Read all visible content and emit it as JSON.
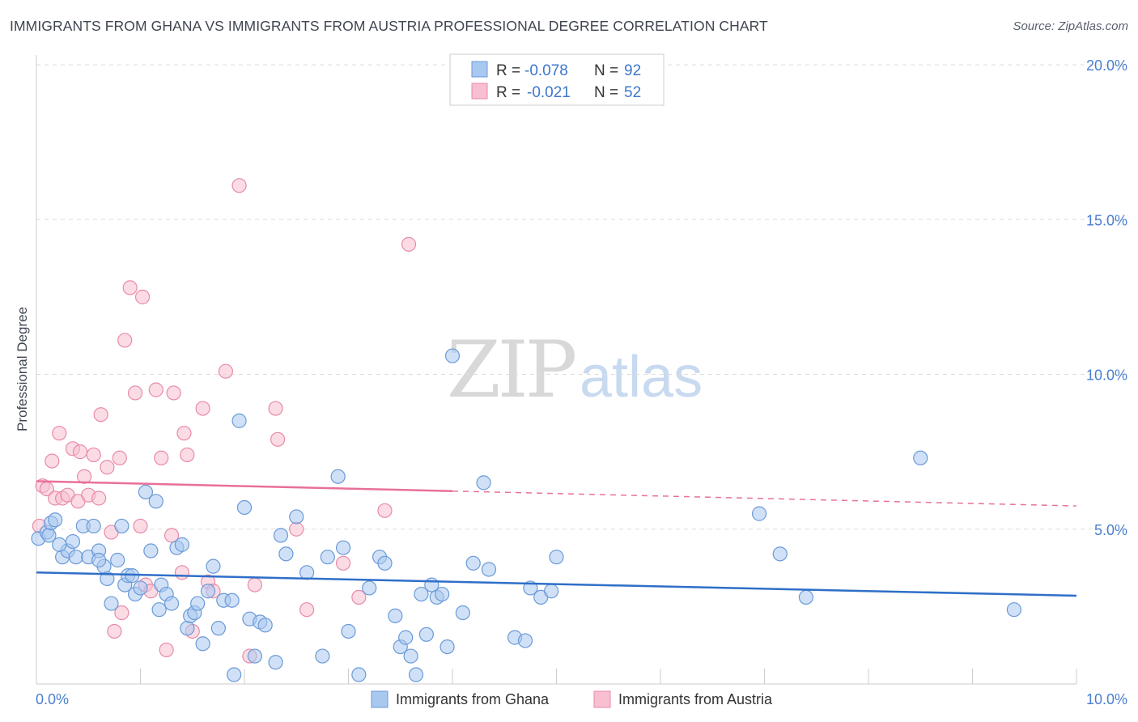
{
  "title": "IMMIGRANTS FROM GHANA VS IMMIGRANTS FROM AUSTRIA PROFESSIONAL DEGREE CORRELATION CHART",
  "source": "Source: ZipAtlas.com",
  "watermark": {
    "zip": "ZIP",
    "atlas": "atlas"
  },
  "colors": {
    "ghana_fill": "#a9c8f0",
    "ghana_stroke": "#6a9ad8",
    "ghana_line": "#2f6fc8",
    "austria_fill": "#f7bfd0",
    "austria_stroke": "#e88aa8",
    "austria_line": "#e8709a",
    "tick_label": "#4a7fd0",
    "grid": "#dddddd"
  },
  "legend": {
    "rows": [
      {
        "r_label": "R =",
        "r_value": "-0.078",
        "n_label": "N =",
        "n_value": "92"
      },
      {
        "r_label": "R =",
        "r_value": "-0.021",
        "n_label": "N =",
        "n_value": "52"
      }
    ]
  },
  "chart_data": {
    "type": "scatter",
    "title": "IMMIGRANTS FROM GHANA VS IMMIGRANTS FROM AUSTRIA PROFESSIONAL DEGREE CORRELATION CHART",
    "xlabel": "",
    "ylabel": "Professional Degree",
    "xlim": [
      0,
      10
    ],
    "ylim": [
      0,
      20
    ],
    "x_tick_labels": [
      "0.0%",
      "10.0%"
    ],
    "y_ticks": [
      5,
      10,
      15,
      20
    ],
    "y_tick_labels": [
      "5.0%",
      "10.0%",
      "15.0%",
      "20.0%"
    ],
    "grid": true,
    "legend_position": "top-center",
    "series": [
      {
        "name": "Immigrants from Ghana",
        "trend": {
          "x": [
            0,
            10
          ],
          "y": [
            3.6,
            2.85
          ],
          "solid_until": 10
        },
        "points": [
          [
            0.02,
            4.7
          ],
          [
            0.1,
            4.9
          ],
          [
            0.12,
            4.8
          ],
          [
            0.14,
            5.2
          ],
          [
            0.18,
            5.3
          ],
          [
            0.25,
            4.1
          ],
          [
            0.3,
            4.3
          ],
          [
            0.35,
            4.6
          ],
          [
            0.38,
            4.1
          ],
          [
            0.45,
            5.1
          ],
          [
            0.5,
            4.1
          ],
          [
            0.55,
            5.1
          ],
          [
            0.6,
            4.3
          ],
          [
            0.65,
            3.8
          ],
          [
            0.68,
            3.4
          ],
          [
            0.72,
            2.6
          ],
          [
            0.78,
            4.0
          ],
          [
            0.82,
            5.1
          ],
          [
            0.85,
            3.2
          ],
          [
            0.88,
            3.5
          ],
          [
            0.92,
            3.5
          ],
          [
            0.95,
            2.9
          ],
          [
            1.0,
            3.1
          ],
          [
            1.05,
            6.2
          ],
          [
            1.1,
            4.3
          ],
          [
            1.15,
            5.9
          ],
          [
            1.18,
            2.4
          ],
          [
            1.2,
            3.2
          ],
          [
            1.25,
            2.9
          ],
          [
            1.3,
            2.6
          ],
          [
            1.35,
            4.4
          ],
          [
            1.4,
            4.5
          ],
          [
            1.45,
            1.8
          ],
          [
            1.48,
            2.2
          ],
          [
            1.52,
            2.3
          ],
          [
            1.55,
            2.6
          ],
          [
            1.6,
            1.3
          ],
          [
            1.65,
            3.0
          ],
          [
            1.7,
            3.8
          ],
          [
            1.75,
            1.8
          ],
          [
            1.8,
            2.7
          ],
          [
            1.88,
            2.7
          ],
          [
            1.9,
            0.3
          ],
          [
            1.95,
            8.5
          ],
          [
            2.0,
            5.7
          ],
          [
            2.05,
            2.1
          ],
          [
            2.1,
            0.9
          ],
          [
            2.15,
            2.0
          ],
          [
            2.2,
            1.9
          ],
          [
            2.3,
            0.7
          ],
          [
            2.35,
            4.8
          ],
          [
            2.4,
            4.2
          ],
          [
            2.5,
            5.4
          ],
          [
            2.6,
            3.6
          ],
          [
            2.75,
            0.9
          ],
          [
            2.8,
            4.1
          ],
          [
            2.9,
            6.7
          ],
          [
            2.95,
            4.4
          ],
          [
            3.0,
            1.7
          ],
          [
            3.1,
            0.3
          ],
          [
            3.2,
            3.1
          ],
          [
            3.3,
            4.1
          ],
          [
            3.35,
            3.9
          ],
          [
            3.45,
            2.2
          ],
          [
            3.5,
            1.2
          ],
          [
            3.55,
            1.5
          ],
          [
            3.6,
            0.9
          ],
          [
            3.65,
            0.3
          ],
          [
            3.7,
            2.9
          ],
          [
            3.75,
            1.6
          ],
          [
            3.8,
            3.2
          ],
          [
            3.85,
            2.8
          ],
          [
            3.9,
            2.9
          ],
          [
            3.95,
            1.2
          ],
          [
            4.0,
            10.6
          ],
          [
            4.1,
            2.3
          ],
          [
            4.2,
            3.9
          ],
          [
            4.3,
            6.5
          ],
          [
            4.35,
            3.7
          ],
          [
            4.6,
            1.5
          ],
          [
            4.7,
            1.4
          ],
          [
            4.75,
            3.1
          ],
          [
            4.85,
            2.8
          ],
          [
            4.95,
            3.0
          ],
          [
            5.0,
            4.1
          ],
          [
            6.95,
            5.5
          ],
          [
            7.15,
            4.2
          ],
          [
            7.4,
            2.8
          ],
          [
            8.5,
            7.3
          ],
          [
            9.4,
            2.4
          ],
          [
            0.22,
            4.5
          ],
          [
            0.6,
            4.0
          ]
        ]
      },
      {
        "name": "Immigrants from Austria",
        "trend": {
          "x": [
            0,
            10
          ],
          "y": [
            6.55,
            5.75
          ],
          "solid_until": 4.0
        },
        "points": [
          [
            0.03,
            5.1
          ],
          [
            0.06,
            6.4
          ],
          [
            0.1,
            6.3
          ],
          [
            0.15,
            7.2
          ],
          [
            0.18,
            6.0
          ],
          [
            0.22,
            8.1
          ],
          [
            0.25,
            6.0
          ],
          [
            0.3,
            6.1
          ],
          [
            0.35,
            7.6
          ],
          [
            0.4,
            5.9
          ],
          [
            0.42,
            7.5
          ],
          [
            0.46,
            6.7
          ],
          [
            0.5,
            6.1
          ],
          [
            0.55,
            7.4
          ],
          [
            0.6,
            6.0
          ],
          [
            0.62,
            8.7
          ],
          [
            0.68,
            7.0
          ],
          [
            0.72,
            4.9
          ],
          [
            0.75,
            1.7
          ],
          [
            0.8,
            7.3
          ],
          [
            0.82,
            2.3
          ],
          [
            0.85,
            11.1
          ],
          [
            0.9,
            12.8
          ],
          [
            0.95,
            9.4
          ],
          [
            1.0,
            5.1
          ],
          [
            1.02,
            12.5
          ],
          [
            1.05,
            3.2
          ],
          [
            1.1,
            3.0
          ],
          [
            1.15,
            9.5
          ],
          [
            1.2,
            7.3
          ],
          [
            1.25,
            1.1
          ],
          [
            1.3,
            4.8
          ],
          [
            1.32,
            9.4
          ],
          [
            1.4,
            3.6
          ],
          [
            1.42,
            8.1
          ],
          [
            1.45,
            7.4
          ],
          [
            1.5,
            1.7
          ],
          [
            1.6,
            8.9
          ],
          [
            1.65,
            3.3
          ],
          [
            1.7,
            3.0
          ],
          [
            1.82,
            10.1
          ],
          [
            1.95,
            16.1
          ],
          [
            2.05,
            0.9
          ],
          [
            2.1,
            3.2
          ],
          [
            2.3,
            8.9
          ],
          [
            2.32,
            7.9
          ],
          [
            2.5,
            5.0
          ],
          [
            2.6,
            2.4
          ],
          [
            2.95,
            3.9
          ],
          [
            3.1,
            2.8
          ],
          [
            3.35,
            5.6
          ],
          [
            3.58,
            14.2
          ]
        ]
      }
    ]
  },
  "bottom_legend": [
    {
      "label": "Immigrants from Ghana"
    },
    {
      "label": "Immigrants from Austria"
    }
  ]
}
